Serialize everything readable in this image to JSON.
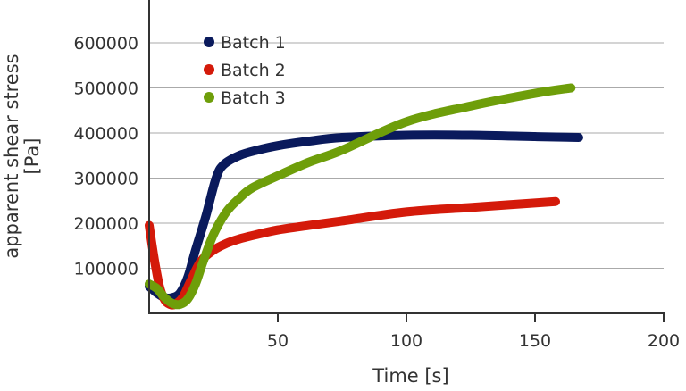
{
  "chart_data": {
    "type": "line",
    "title": "",
    "xlabel": "Time [s]",
    "ylabel": [
      "apparent shear stress",
      "[Pa]"
    ],
    "xlim": [
      0,
      200
    ],
    "ylim": [
      0,
      650000
    ],
    "xticks": [
      50,
      100,
      150,
      200
    ],
    "xtick_labels": [
      "50",
      "100",
      "150",
      "200"
    ],
    "yticks": [
      100000,
      200000,
      300000,
      400000,
      500000,
      600000
    ],
    "ytick_labels": [
      "100000",
      "200000",
      "300000",
      "400000",
      "500000",
      "600000"
    ],
    "grid": "horizontal",
    "legend_position": "top-left",
    "series": [
      {
        "name": "Batch 1",
        "color": "#0a1a5c",
        "x": [
          0,
          3,
          6,
          9,
          12,
          15,
          18,
          22,
          26,
          29,
          35,
          42,
          50,
          62,
          75,
          100,
          125,
          150,
          167
        ],
        "y": [
          60000,
          45000,
          35000,
          35000,
          45000,
          80000,
          140000,
          215000,
          300000,
          330000,
          350000,
          362000,
          372000,
          382000,
          390000,
          395000,
          395000,
          392000,
          390000
        ]
      },
      {
        "name": "Batch 2",
        "color": "#d41a0a",
        "x": [
          0,
          2,
          4,
          6,
          8,
          10,
          13,
          16,
          20,
          25,
          30,
          35,
          42,
          50,
          62,
          75,
          100,
          125,
          158
        ],
        "y": [
          195000,
          120000,
          60000,
          30000,
          20000,
          20000,
          35000,
          70000,
          115000,
          140000,
          155000,
          165000,
          175000,
          185000,
          195000,
          205000,
          225000,
          235000,
          248000
        ]
      },
      {
        "name": "Batch 3",
        "color": "#6e9e0a",
        "x": [
          0,
          3,
          6,
          9,
          12,
          15,
          18,
          21,
          25,
          30,
          35,
          40,
          50,
          62,
          75,
          100,
          125,
          150,
          164
        ],
        "y": [
          65000,
          55000,
          35000,
          22000,
          20000,
          32000,
          65000,
          115000,
          175000,
          225000,
          255000,
          278000,
          305000,
          335000,
          362000,
          425000,
          460000,
          488000,
          500000
        ]
      }
    ]
  }
}
